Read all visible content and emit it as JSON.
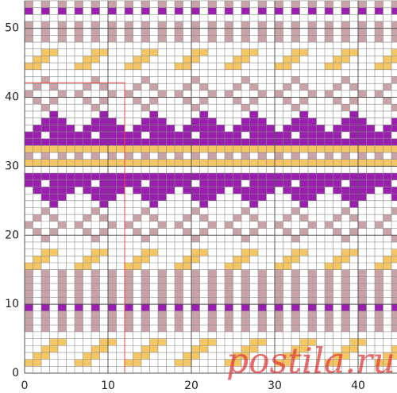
{
  "chart_data": {
    "type": "grid",
    "xlim": [
      0,
      45
    ],
    "ylim": [
      0,
      54
    ],
    "xticks": [
      0,
      10,
      20,
      30,
      40
    ],
    "yticks": [
      0,
      10,
      20,
      30,
      40,
      50
    ],
    "colors": {
      "p": "#9a1fae",
      "m": "#c9a2a8",
      "y": "#f4c664"
    },
    "rows": [
      ".............................................",
      "yy....yy....yy....yy....yy....yy....yy....yy.",
      ".yy....yy....yy....yy....yy....yy....yy....yy",
      "..yy....yy....yy....yy....yy....yy....yy....y",
      "...yy....yy....yy....yy....yy....yy....yy....",
      ".............................................",
      "m.m.m.m.m.m.m.m.m.m.m.m.m.m.m.m.m.m.m.m.m.m.m",
      "m.m.m.m.m.m.m.m.m.m.m.m.m.m.m.m.m.m.m.m.m.m.m",
      "m.m.m.m.m.m.m.m.m.m.m.m.m.m.m.m.m.m.m.m.m.m.m",
      "p.p.p.p.p.p.p.p.p.p.p.p.p.p.p.p.p.p.p.p.p.p.p",
      "m.m.m.m.m.m.m.m.m.m.m.m.m.m.m.m.m.m.m.m.m.m.m",
      "m.m.m.m.m.m.m.m.m.m.m.m.m.m.m.m.m.m.m.m.m.m.m",
      "m.m.m.m.m.m.m.m.m.m.m.m.m.m.m.m.m.m.m.m.m.m.m",
      "m.m.m.m.m.m.m.m.m.m.m.m.m.m.m.m.m.m.m.m.m.m.m",
      "m.m.m.m.m.m.m.m.m.m.m.m.m.m.m.m.m.m.m.m.m.m.m",
      "yy....yy....yy....yy....yy....yy....yy....yy.",
      ".yy....yy....yy....yy....yy....yy....yy....yy",
      "..yy....yy....yy....yy....yy....yy....yy....y",
      ".............................................",
      "..m.....m.....m.....m.....m.....m.....m.....m",
      ".m.m...m.m...m.m...m.m...m.m...m.m...m.m...m.",
      "m...m.m...m.m...m.m...m.m...m.m...m.m...m.m..",
      ".m.m...m.m...m.m...m.m...m.m...m.m...m.m...m.",
      "..m.....m.....m.....m.....m.....m.....m.....m",
      "...p.....p.....p.....p.....p.....p.....p.....",
      "..ppp...ppp...ppp...ppp...ppp...ppp...ppp...p",
      ".ppppp.ppppp.ppppp.ppppp.ppppp.ppppp.ppppp.pp",
      "pp.ppppp.ppppp.ppppp.ppppp.ppppp.ppppp.ppppp.",
      "ppppppppppppppppppppppppppppppppppppppppppppp",
      ".............................................",
      "yyyyyyyyyyyyyyyyyyyyyyyyyyyyyyyyyyyyyyyyyyyyy",
      "m.m.m.m.m.m.m.m.m.m.m.m.m.m.m.m.m.m.m.m.m.m.m",
      "yyyyyyyyyyyyyyyyyyyyyyyyyyyyyyyyyyyyyyyyyyyyy",
      "ppppppppppppppppppppppppppppppppppppppppppppp",
      "pp.ppppp.ppppp.ppppp.ppppp.ppppp.ppppp.ppppp.",
      ".ppppp.ppppp.ppppp.ppppp.ppppp.ppppp.ppppp.pp",
      "..ppp...ppp...ppp...ppp...ppp...ppp...ppp...p",
      "...p.....p.....p.....p.....p.....p.....p.....",
      "..m.....m.....m.....m.....m.....m.....m.....m",
      ".m.m...m.m...m.m...m.m...m.m...m.m...m.m...m.",
      "m...m.m...m.m...m.m...m.m...m.m...m.m...m.m..",
      ".m.m...m.m...m.m...m.m...m.m...m.m...m.m...m.",
      "..m.....m.....m.....m.....m.....m.....m.....m",
      ".............................................",
      "yy....yy....yy....yy....yy....yy....yy....yy.",
      ".yy....yy....yy....yy....yy....yy....yy....yy",
      "..yy....yy....yy....yy....yy....yy....yy....y",
      ".............................................",
      "m.m.m.m.m.m.m.m.m.m.m.m.m.m.m.m.m.m.m.m.m.m.m",
      "m.m.m.m.m.m.m.m.m.m.m.m.m.m.m.m.m.m.m.m.m.m.m",
      "m.m.m.m.m.m.m.m.m.m.m.m.m.m.m.m.m.m.m.m.m.m.m",
      ".............................................",
      "p.p.p.p.p.p.p.p.p.p.p.p.p.p.p.p.p.p.p.p.p.p.p",
      "m.m.m.m.m.m.m.m.m.m.m.m.m.m.m.m.m.m.m.m.m.m.m"
    ],
    "watermark": "postila.ru"
  }
}
